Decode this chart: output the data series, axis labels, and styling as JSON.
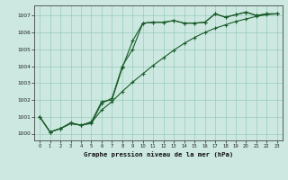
{
  "title": "Graphe pression niveau de la mer (hPa)",
  "bg_color": "#cce8e0",
  "grid_color": "#99ccbb",
  "line_color": "#1a5c2a",
  "x_min": -0.5,
  "x_max": 23.5,
  "y_min": 999.6,
  "y_max": 1007.6,
  "y_ticks": [
    1000,
    1001,
    1002,
    1003,
    1004,
    1005,
    1006,
    1007
  ],
  "x_ticks": [
    0,
    1,
    2,
    3,
    4,
    5,
    6,
    7,
    8,
    9,
    10,
    11,
    12,
    13,
    14,
    15,
    16,
    17,
    18,
    19,
    20,
    21,
    22,
    23
  ],
  "series1_x": [
    0,
    1,
    2,
    3,
    4,
    5,
    6,
    7,
    8,
    9,
    10,
    11,
    12,
    13,
    14,
    15,
    16,
    17,
    18,
    19,
    20,
    21,
    22,
    23
  ],
  "series1_y": [
    1001.0,
    1000.1,
    1000.3,
    1000.6,
    1000.5,
    1000.6,
    1001.8,
    1002.1,
    1004.0,
    1005.0,
    1006.55,
    1006.6,
    1006.6,
    1006.7,
    1006.55,
    1006.55,
    1006.6,
    1007.1,
    1006.9,
    1007.05,
    1007.2,
    1007.0,
    1007.1,
    1007.1
  ],
  "series2_x": [
    0,
    1,
    2,
    3,
    4,
    5,
    6,
    7,
    8,
    9,
    10,
    11,
    12,
    13,
    14,
    15,
    16,
    17,
    18,
    19,
    20,
    21,
    22,
    23
  ],
  "series2_y": [
    1001.0,
    1000.1,
    1000.3,
    1000.65,
    1000.5,
    1000.65,
    1001.4,
    1001.9,
    1002.5,
    1003.05,
    1003.55,
    1004.05,
    1004.5,
    1004.95,
    1005.35,
    1005.7,
    1006.0,
    1006.25,
    1006.45,
    1006.65,
    1006.8,
    1006.95,
    1007.05,
    1007.1
  ],
  "series3_x": [
    0,
    1,
    2,
    3,
    4,
    5,
    6,
    7,
    8,
    9,
    10,
    11,
    12,
    13,
    14,
    15,
    16,
    17,
    18,
    19,
    20,
    21,
    22,
    23
  ],
  "series3_y": [
    1001.0,
    1000.1,
    1000.3,
    1000.6,
    1000.5,
    1000.7,
    1001.9,
    1002.0,
    1003.9,
    1005.5,
    1006.55,
    1006.6,
    1006.6,
    1006.7,
    1006.55,
    1006.55,
    1006.6,
    1007.1,
    1006.9,
    1007.05,
    1007.2,
    1007.0,
    1007.1,
    1007.1
  ]
}
